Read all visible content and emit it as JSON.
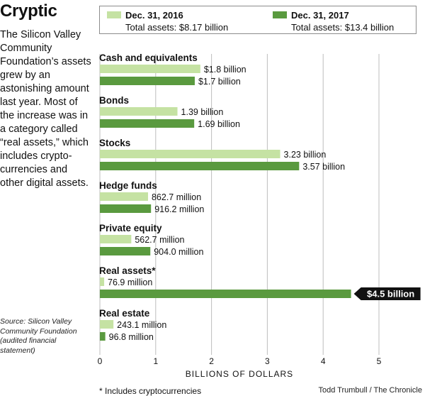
{
  "headline": "Cryptic",
  "intro": "The Silicon Valley Community Foundation’s assets grew by an astonishing amount last year. Most of the increase was in a category called “real assets,” which includes crypto-currencies and other digital assets.",
  "source": "Source: Silicon Valley Community Foundation (audited financial statement)",
  "footnote": "* Includes cryptocurrencies",
  "credit": "Todd Trumbull / The Chronicle",
  "colors": {
    "series_2016": "#c5e2a3",
    "series_2017": "#5a9a3f",
    "callout_bg": "#111111",
    "grid": "#bdbdbd"
  },
  "chart_data": {
    "type": "bar",
    "orientation": "horizontal",
    "title": "",
    "xlabel": "BILLIONS OF DOLLARS",
    "ylabel": "",
    "xlim": [
      0,
      5
    ],
    "xticks": [
      0,
      1,
      2,
      3,
      4,
      5
    ],
    "grid": "vertical",
    "legend_position": "top",
    "categories": [
      "Cash and equivalents",
      "Bonds",
      "Stocks",
      "Hedge funds",
      "Private equity",
      "Real assets*",
      "Real estate"
    ],
    "series": [
      {
        "name": "Dec. 31, 2016",
        "total": "Total assets: $8.17 billion",
        "values": [
          1.8,
          1.39,
          3.23,
          0.8627,
          0.5627,
          0.0769,
          0.2431
        ],
        "labels": [
          "$1.8 billion",
          "1.39 billion",
          "3.23 billion",
          "862.7 million",
          "562.7 million",
          "76.9 million",
          "243.1 million"
        ]
      },
      {
        "name": "Dec. 31, 2017",
        "total": "Total assets: $13.4 billion",
        "values": [
          1.7,
          1.69,
          3.57,
          0.9162,
          0.904,
          4.5,
          0.0968
        ],
        "labels": [
          "$1.7 billion",
          "1.69 billion",
          "3.57 billion",
          "916.2 million",
          "904.0 million",
          "$4.5 billion",
          "96.8 million"
        ]
      }
    ],
    "callout": {
      "category": "Real assets*",
      "series": "Dec. 31, 2017",
      "text": "$4.5 billion"
    }
  }
}
